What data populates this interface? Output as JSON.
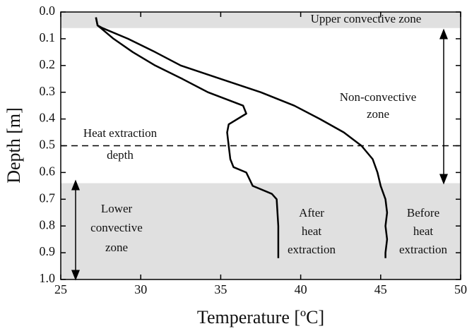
{
  "chart_data": {
    "type": "line",
    "xlabel": "Temperature [ºC]",
    "ylabel": "Depth [m]",
    "xlim": [
      25,
      50
    ],
    "xticks": [
      25,
      30,
      35,
      40,
      45,
      50
    ],
    "ylim": [
      0,
      1
    ],
    "yticks": [
      {
        "value": 0,
        "label": "0.0"
      },
      0.1,
      0.2,
      0.3,
      0.4,
      0.5,
      0.6,
      0.7,
      0.8,
      0.9,
      {
        "value": 1,
        "label": "1.0"
      }
    ],
    "y_inverted": true,
    "shaded_regions": [
      [
        0,
        0.06
      ],
      [
        0.64,
        1
      ]
    ],
    "hline": 0.5,
    "series": [
      {
        "name": "Before heat extraction",
        "color": "#000000",
        "x": [
          27.2,
          27.3,
          27.6,
          29.2,
          30.9,
          32.5,
          35,
          37.5,
          39.6,
          41.2,
          42.7,
          43.8,
          44.5,
          44.8,
          45,
          45.3,
          45.4,
          45.3,
          45.4,
          45.3,
          45.3
        ],
        "y": [
          0.02,
          0.05,
          0.06,
          0.1,
          0.15,
          0.2,
          0.25,
          0.3,
          0.35,
          0.4,
          0.45,
          0.5,
          0.55,
          0.6,
          0.65,
          0.7,
          0.75,
          0.8,
          0.85,
          0.9,
          0.92
        ]
      },
      {
        "name": "After heat extraction",
        "color": "#000000",
        "x": [
          27.2,
          27.3,
          27.5,
          28.3,
          29.5,
          30.9,
          32.6,
          34.2,
          36.4,
          36.6,
          35.5,
          35.4,
          35.5,
          35.6,
          35.8,
          36.6,
          37,
          38.2,
          38.5,
          38.6,
          38.6,
          38.6
        ],
        "y": [
          0.02,
          0.05,
          0.06,
          0.1,
          0.15,
          0.2,
          0.25,
          0.3,
          0.35,
          0.38,
          0.42,
          0.45,
          0.5,
          0.55,
          0.58,
          0.6,
          0.65,
          0.68,
          0.7,
          0.8,
          0.9,
          0.92
        ]
      }
    ],
    "annotations": [
      {
        "lines": [
          "Upper convective zone"
        ]
      },
      {
        "lines": [
          "Non-convective",
          "zone"
        ]
      },
      {
        "lines": [
          "Heat extraction",
          "depth"
        ]
      },
      {
        "lines": [
          "Lower",
          "convective",
          "zone"
        ]
      },
      {
        "lines": [
          "After",
          "heat",
          "extraction"
        ]
      },
      {
        "lines": [
          "Before",
          "heat",
          "extraction"
        ]
      }
    ]
  }
}
